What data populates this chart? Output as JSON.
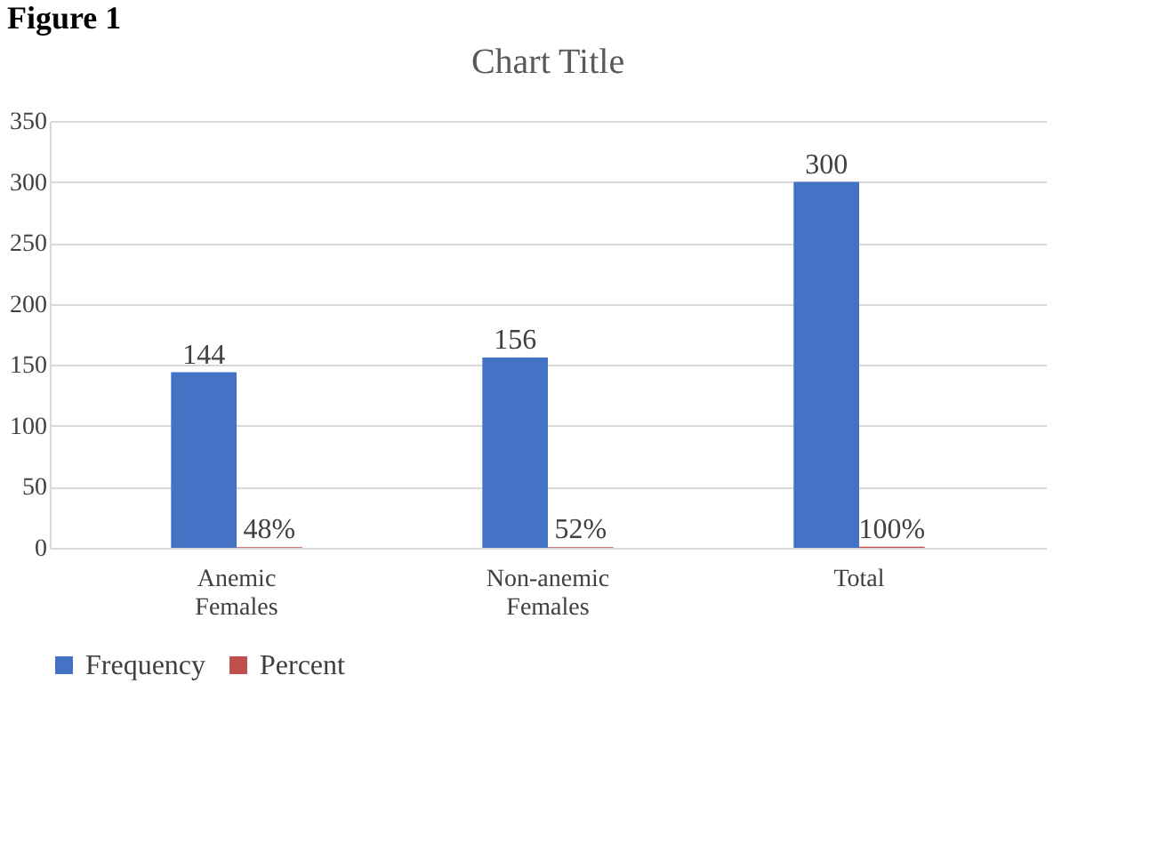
{
  "chart_data": {
    "type": "bar",
    "title": "Chart Title",
    "annotations": [
      "Figure 1"
    ],
    "categories": [
      "Anemic Females",
      "Non-anemic Females",
      "Total"
    ],
    "series": [
      {
        "name": "Frequency",
        "color": "#4472c4",
        "values": [
          144,
          156,
          300
        ],
        "value_labels": [
          "144",
          "156",
          "300"
        ]
      },
      {
        "name": "Percent",
        "color": "#c0504d",
        "values": [
          0.48,
          0.52,
          1
        ],
        "value_labels": [
          "48%",
          "52%",
          "100%"
        ]
      }
    ],
    "ylim": [
      0,
      350
    ],
    "yticks": [
      0,
      50,
      100,
      150,
      200,
      250,
      300,
      350
    ],
    "grid": "y",
    "legend": "bottom"
  }
}
